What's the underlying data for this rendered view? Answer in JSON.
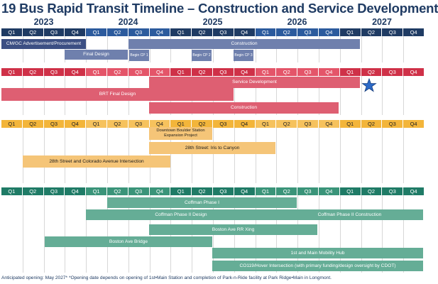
{
  "title": "19 Bus Rapid Transit Timeline – Construction and Service Development",
  "years": [
    "2023",
    "2024",
    "2025",
    "2026",
    "2027"
  ],
  "quarters": [
    "Q1",
    "Q2",
    "Q3",
    "Q4",
    "Q1",
    "Q2",
    "Q3",
    "Q4",
    "Q1",
    "Q2",
    "Q3",
    "Q4",
    "Q1",
    "Q2",
    "Q3",
    "Q4",
    "Q1",
    "Q2",
    "Q3",
    "Q4"
  ],
  "colors": {
    "title": "#1f3b63",
    "blue_header": "#1f3b63",
    "blue_bar_main": "#3c4f83",
    "blue_bar_light": "#6f80ad",
    "red_header": "#cf3148",
    "red_bar": "#de5f72",
    "yellow_header": "#f3b53a",
    "yellow_bar": "#f5c578",
    "green_header": "#1f7b66",
    "green_bar": "#65ad96",
    "star": "#2c69c7"
  },
  "panels": {
    "blue": {
      "bars": [
        {
          "label": "CM/GC Advertisement/Procurement",
          "name": "cmgc-advertisement-bar"
        },
        {
          "label": "Construction",
          "name": "blue-construction-bar"
        },
        {
          "label": "Final Design",
          "name": "blue-final-design-bar"
        },
        {
          "label": "Begin CP 1",
          "name": "begin-cp1-bar"
        },
        {
          "label": "Begin CP 2",
          "name": "begin-cp2-bar"
        },
        {
          "label": "Begin CP 3",
          "name": "begin-cp3-bar"
        }
      ]
    },
    "red": {
      "bars": [
        {
          "label": "Service Development",
          "name": "service-development-bar"
        },
        {
          "label": "BRT Final Design",
          "name": "brt-final-design-bar"
        },
        {
          "label": "Construction",
          "name": "red-construction-bar"
        }
      ]
    },
    "yellow": {
      "bars": [
        {
          "label": "Downtown Boulder Station Expansion Project",
          "name": "downtown-boulder-station-bar"
        },
        {
          "label": "28th Street: Iris to Canyon",
          "name": "iris-to-canyon-bar"
        },
        {
          "label": "28th Street and Colorado Avenue Intersection",
          "name": "colorado-avenue-intersection-bar"
        }
      ]
    },
    "green": {
      "bars": [
        {
          "label": "Coffman Phase I",
          "name": "coffman-phase-1-bar"
        },
        {
          "label": "Coffman Phase II Design",
          "name": "coffman-phase-2-design-bar"
        },
        {
          "label": "Coffman Phase II Construction",
          "name": "coffman-phase-2-construction-bar"
        },
        {
          "label": "Boston Ave RR Xing",
          "name": "boston-ave-rr-xing-bar"
        },
        {
          "label": "Boston Ave Bridge",
          "name": "boston-ave-bridge-bar"
        },
        {
          "label": "1st and Main Mobility Hub",
          "name": "first-and-main-mobility-hub-bar"
        },
        {
          "label": "CO119/Hover Intersection (with primary funding/design oversight by CDOT)",
          "name": "co119-hover-intersection-bar"
        }
      ]
    }
  },
  "footnote": "Anticipated opening: May 2027*  *Opening date depends on opening of 1st•Main Station and completion of Park-n-Ride facility at Park Ridge•Main in Longmont."
}
